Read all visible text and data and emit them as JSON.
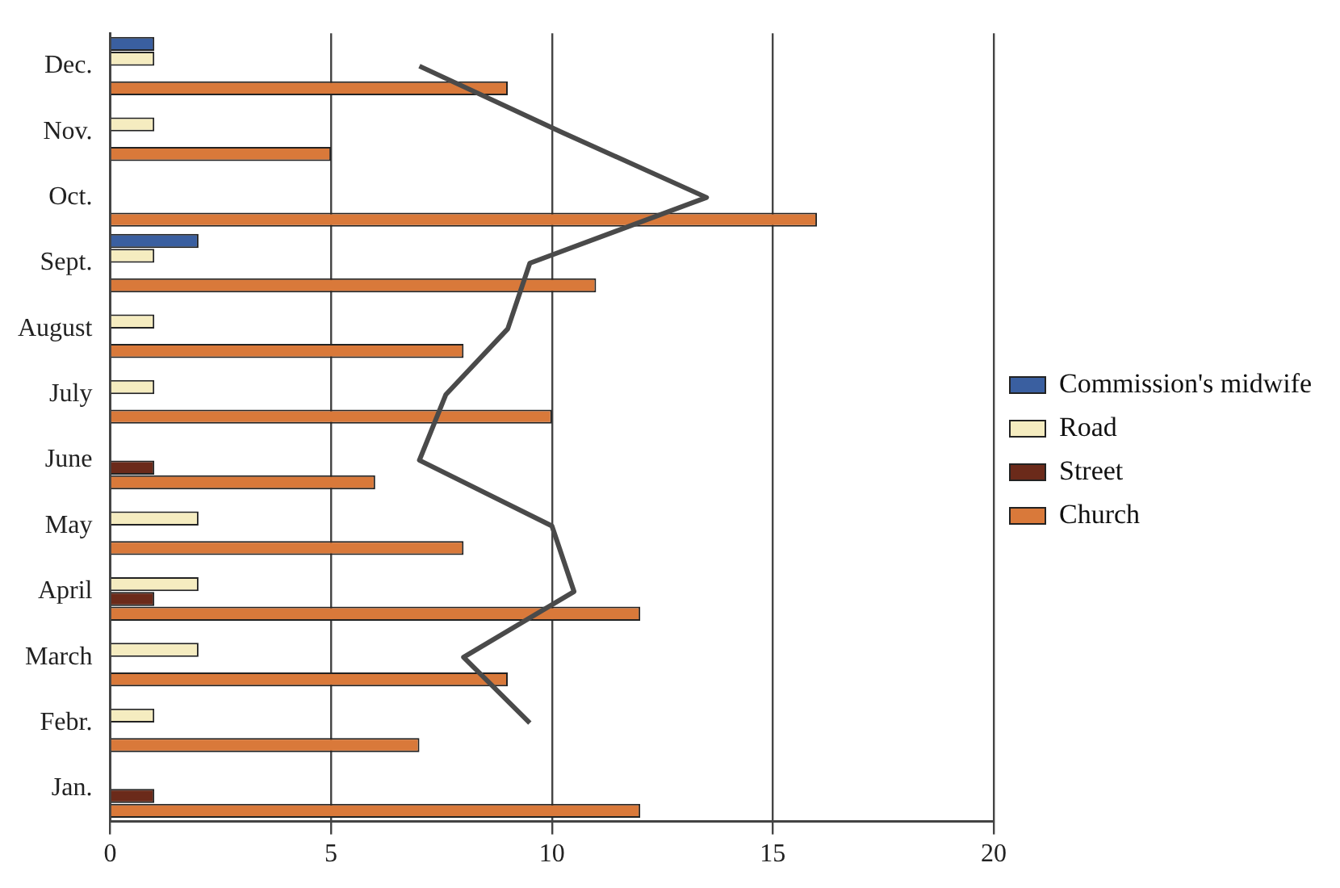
{
  "chart_data": {
    "type": "bar",
    "orientation": "horizontal",
    "categories": [
      "Dec.",
      "Nov.",
      "Oct.",
      "Sept.",
      "August",
      "July",
      "June",
      "May",
      "April",
      "March",
      "Febr.",
      "Jan."
    ],
    "series": [
      {
        "name": "Commission's midwife",
        "color": "#3a5fa0",
        "values": [
          1,
          0,
          0,
          2,
          0,
          0,
          0,
          0,
          0,
          0,
          0,
          0
        ]
      },
      {
        "name": "Road",
        "color": "#f5ecc0",
        "values": [
          1,
          1,
          0,
          1,
          1,
          1,
          0,
          2,
          2,
          2,
          1,
          0
        ]
      },
      {
        "name": "Street",
        "color": "#6b2a1a",
        "values": [
          0,
          0,
          0,
          0,
          0,
          0,
          1,
          0,
          1,
          0,
          0,
          1
        ]
      },
      {
        "name": "Church",
        "color": "#d9793a",
        "values": [
          9,
          5,
          16,
          11,
          8,
          10,
          6,
          8,
          12,
          9,
          7,
          12
        ]
      },
      {
        "type": "line",
        "color": "#4a4a4a",
        "values": [
          7,
          10.2,
          13.5,
          9.5,
          9,
          7.6,
          7,
          10,
          10.5,
          8,
          9.5,
          null
        ]
      }
    ],
    "xlim": [
      0,
      20
    ],
    "xticks": [
      0,
      5,
      10,
      15,
      20
    ],
    "grid": "x",
    "legend": "right",
    "marker": "none"
  }
}
